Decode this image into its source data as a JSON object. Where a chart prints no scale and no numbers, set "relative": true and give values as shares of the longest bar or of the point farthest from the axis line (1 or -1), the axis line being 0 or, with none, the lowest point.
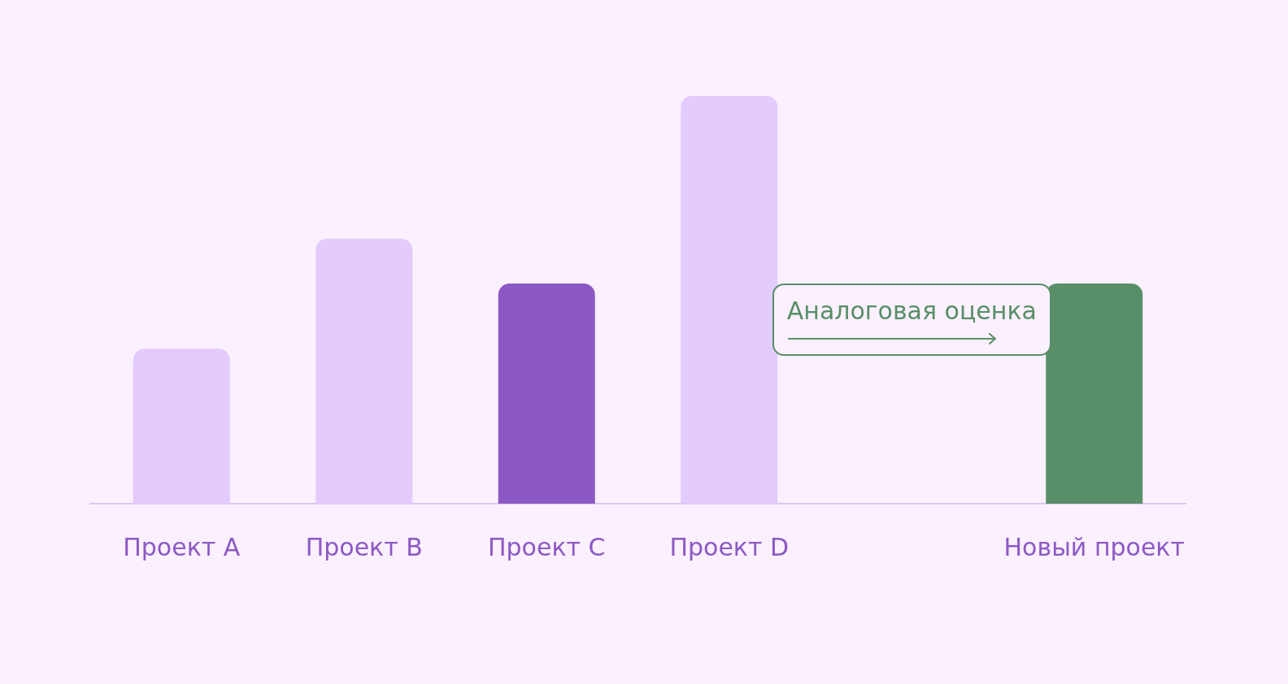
{
  "chart_data": {
    "type": "bar",
    "relative": true,
    "categories": [
      "Проект A",
      "Проект B",
      "Проект C",
      "Проект D",
      null,
      "Новый проект"
    ],
    "values": [
      0.38,
      0.65,
      0.54,
      1,
      null,
      0.54
    ],
    "colors": [
      "#e3cbfd",
      "#e3cbfd",
      "#8c59c4",
      "#e3cbfd",
      "#e3cbfd",
      "#588f68"
    ],
    "annotations": [
      "Аналоговая оценка"
    ]
  }
}
